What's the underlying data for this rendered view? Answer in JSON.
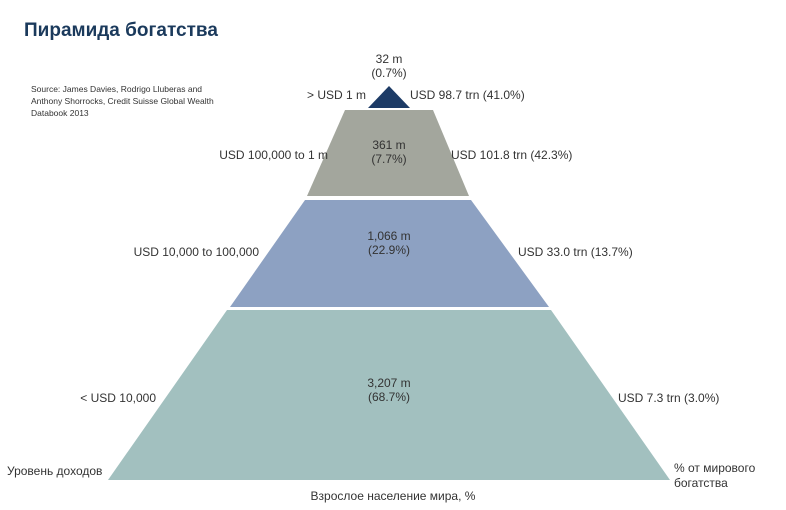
{
  "title": "Пирамида богатства",
  "source": "Source: James Davies, Rodrigo Lluberas and Anthony Shorrocks, Credit Suisse Global Wealth Databook 2013",
  "axes": {
    "left": "Уровень доходов",
    "right": "% от мирового богатства",
    "bottom": "Взрослое население мира, %"
  },
  "colors": {
    "top": "#1d3b66",
    "upper": "#a3a69d",
    "middle": "#8da1c2",
    "bottom": "#a2c0bf"
  },
  "chart_data": {
    "type": "pyramid",
    "title": "Пирамида богатства",
    "levels": [
      {
        "wealth_range": "> USD 1 m",
        "adults": "32 m",
        "adults_share": "(0.7%)",
        "wealth": "USD 98.7 trn (41.0%)",
        "adults_m": 32,
        "adults_pct": 0.7,
        "wealth_trn": 98.7,
        "wealth_pct": 41.0
      },
      {
        "wealth_range": "USD 100,000 to 1 m",
        "adults": "361 m",
        "adults_share": "(7.7%)",
        "wealth": "USD 101.8 trn (42.3%)",
        "adults_m": 361,
        "adults_pct": 7.7,
        "wealth_trn": 101.8,
        "wealth_pct": 42.3
      },
      {
        "wealth_range": "USD 10,000 to 100,000",
        "adults": "1,066 m",
        "adults_share": "(22.9%)",
        "wealth": "USD 33.0 trn (13.7%)",
        "adults_m": 1066,
        "adults_pct": 22.9,
        "wealth_trn": 33.0,
        "wealth_pct": 13.7
      },
      {
        "wealth_range": "< USD 10,000",
        "adults": "3,207 m",
        "adults_share": "(68.7%)",
        "wealth": "USD 7.3 trn (3.0%)",
        "adults_m": 3207,
        "adults_pct": 68.7,
        "wealth_trn": 7.3,
        "wealth_pct": 3.0
      }
    ]
  }
}
